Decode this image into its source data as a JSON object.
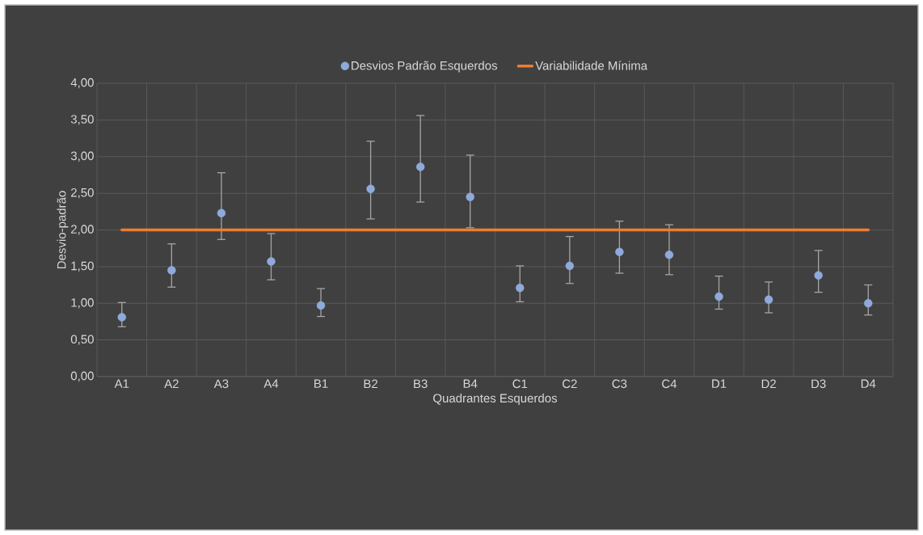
{
  "chart_data": {
    "type": "scatter",
    "xlabel": "Quadrantes Esquerdos",
    "ylabel": "Desvio-padrão",
    "categories": [
      "A1",
      "A2",
      "A3",
      "A4",
      "B1",
      "B2",
      "B3",
      "B4",
      "C1",
      "C2",
      "C3",
      "C4",
      "D1",
      "D2",
      "D3",
      "D4"
    ],
    "series": [
      {
        "name": "Desvios Padrão Esquerdos",
        "marker": "circle",
        "color": "#8eaadb",
        "values": [
          0.81,
          1.45,
          2.23,
          1.57,
          0.97,
          2.56,
          2.86,
          2.45,
          1.21,
          1.51,
          1.7,
          1.66,
          1.09,
          1.05,
          1.38,
          1.0
        ],
        "errors": [
          [
            0.68,
            1.01
          ],
          [
            1.22,
            1.81
          ],
          [
            1.87,
            2.78
          ],
          [
            1.32,
            1.95
          ],
          [
            0.82,
            1.2
          ],
          [
            2.15,
            3.21
          ],
          [
            2.38,
            3.56
          ],
          [
            2.03,
            3.02
          ],
          [
            1.02,
            1.51
          ],
          [
            1.27,
            1.91
          ],
          [
            1.41,
            2.12
          ],
          [
            1.39,
            2.07
          ],
          [
            0.92,
            1.37
          ],
          [
            0.87,
            1.29
          ],
          [
            1.15,
            1.72
          ],
          [
            0.84,
            1.25
          ]
        ]
      },
      {
        "name": "Variabilidade Mínima",
        "type": "line",
        "marker": "none",
        "color": "#ed7d31",
        "values": [
          2,
          2,
          2,
          2,
          2,
          2,
          2,
          2,
          2,
          2,
          2,
          2,
          2,
          2,
          2,
          2
        ]
      }
    ],
    "ylim": [
      0,
      4
    ],
    "yticks": [
      {
        "value": 0,
        "label": "0,00"
      },
      {
        "value": 0.5,
        "label": "0,50"
      },
      {
        "value": 1,
        "label": "1,00"
      },
      {
        "value": 1.5,
        "label": "1,50"
      },
      {
        "value": 2,
        "label": "2,00"
      },
      {
        "value": 2.5,
        "label": "2,50"
      },
      {
        "value": 3,
        "label": "3,00"
      },
      {
        "value": 3.5,
        "label": "3,50"
      },
      {
        "value": 4,
        "label": "4,00"
      }
    ],
    "grid": true,
    "legend": "top"
  }
}
